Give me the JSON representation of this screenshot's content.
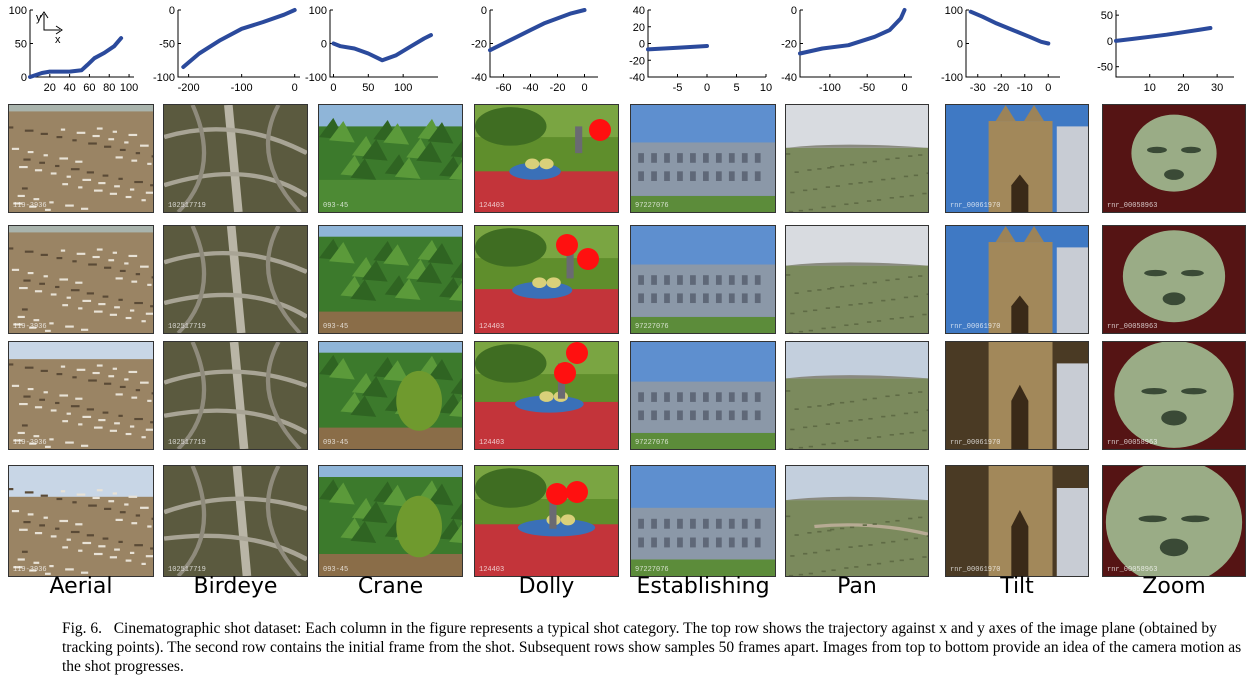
{
  "columns": [
    {
      "label": "Aerial",
      "watermark": "119-3936"
    },
    {
      "label": "Birdeye",
      "watermark": "102517719"
    },
    {
      "label": "Crane",
      "watermark": "093-45"
    },
    {
      "label": "Dolly",
      "watermark": "124403"
    },
    {
      "label": "Establishing",
      "watermark": "97227076"
    },
    {
      "label": "Pan",
      "watermark": ""
    },
    {
      "label": "Tilt",
      "watermark": "rnr_00061970"
    },
    {
      "label": "Zoom",
      "watermark": "rnr_00058963"
    }
  ],
  "axis_legend": {
    "y": "y",
    "x": "x"
  },
  "caption": {
    "fig": "Fig. 6.",
    "text": "Cinematographic shot dataset: Each column in the figure represents a typical shot category. The top row shows the trajectory against x and y axes of the image plane (obtained by tracking points). The second row contains the initial frame from the shot. Subsequent rows show samples 50 frames apart. Images from top to bottom provide an idea of the camera motion as the shot progresses."
  },
  "chart_data": [
    {
      "type": "line",
      "title": "",
      "xlim": [
        0,
        105
      ],
      "ylim": [
        0,
        100
      ],
      "xticks": [
        20,
        40,
        60,
        80,
        100
      ],
      "yticks": [
        0,
        50,
        100
      ],
      "x": [
        0,
        12,
        20,
        40,
        52,
        58,
        65,
        75,
        85,
        92
      ],
      "y": [
        0,
        6,
        8,
        8,
        10,
        18,
        28,
        36,
        46,
        58
      ]
    },
    {
      "type": "line",
      "title": "",
      "xlim": [
        -220,
        10
      ],
      "ylim": [
        -100,
        0
      ],
      "xticks": [
        -200,
        -100,
        0
      ],
      "yticks": [
        -100,
        -50,
        0
      ],
      "x": [
        -210,
        -180,
        -140,
        -100,
        -60,
        -20,
        0
      ],
      "y": [
        -85,
        -65,
        -45,
        -28,
        -18,
        -7,
        0
      ]
    },
    {
      "type": "line",
      "title": "",
      "xlim": [
        -5,
        150
      ],
      "ylim": [
        -100,
        100
      ],
      "xticks": [
        0,
        50,
        100
      ],
      "yticks": [
        -100,
        0,
        100
      ],
      "x": [
        0,
        10,
        30,
        50,
        70,
        90,
        110,
        130,
        140
      ],
      "y": [
        0,
        -8,
        -15,
        -30,
        -50,
        -35,
        -10,
        15,
        25
      ]
    },
    {
      "type": "line",
      "title": "",
      "xlim": [
        -70,
        10
      ],
      "ylim": [
        -40,
        0
      ],
      "xticks": [
        -60,
        -40,
        -20,
        0
      ],
      "yticks": [
        -40,
        -20,
        0
      ],
      "x": [
        -70,
        -60,
        -50,
        -40,
        -30,
        -20,
        -10,
        0
      ],
      "y": [
        -24,
        -20,
        -16,
        -12,
        -8,
        -5,
        -2,
        0
      ]
    },
    {
      "type": "line",
      "title": "",
      "xlim": [
        -10,
        10
      ],
      "ylim": [
        -40,
        40
      ],
      "xticks": [
        -5,
        0,
        5,
        10
      ],
      "yticks": [
        -40,
        -20,
        0,
        20,
        40
      ],
      "x": [
        -10,
        -5,
        0
      ],
      "y": [
        -7,
        -5,
        -3
      ]
    },
    {
      "type": "line",
      "title": "",
      "xlim": [
        -140,
        10
      ],
      "ylim": [
        -40,
        0
      ],
      "xticks": [
        -100,
        -50,
        0
      ],
      "yticks": [
        -40,
        -20,
        0
      ],
      "x": [
        -140,
        -110,
        -75,
        -40,
        -20,
        -5,
        0
      ],
      "y": [
        -26,
        -23,
        -21,
        -16,
        -12,
        -5,
        0
      ]
    },
    {
      "type": "line",
      "title": "",
      "xlim": [
        -35,
        5
      ],
      "ylim": [
        -100,
        100
      ],
      "xticks": [
        -30,
        -20,
        -10,
        0
      ],
      "yticks": [
        -100,
        0,
        100
      ],
      "x": [
        -33,
        -28,
        -22,
        -15,
        -8,
        -3,
        0
      ],
      "y": [
        95,
        80,
        60,
        40,
        20,
        5,
        0
      ]
    },
    {
      "type": "line",
      "title": "",
      "xlim": [
        0,
        35
      ],
      "ylim": [
        -70,
        60
      ],
      "xticks": [
        10,
        20,
        30
      ],
      "yticks": [
        -50,
        0,
        50
      ],
      "x": [
        0,
        5,
        10,
        15,
        20,
        25,
        28
      ],
      "y": [
        0,
        4,
        8,
        12,
        17,
        22,
        25
      ]
    }
  ]
}
